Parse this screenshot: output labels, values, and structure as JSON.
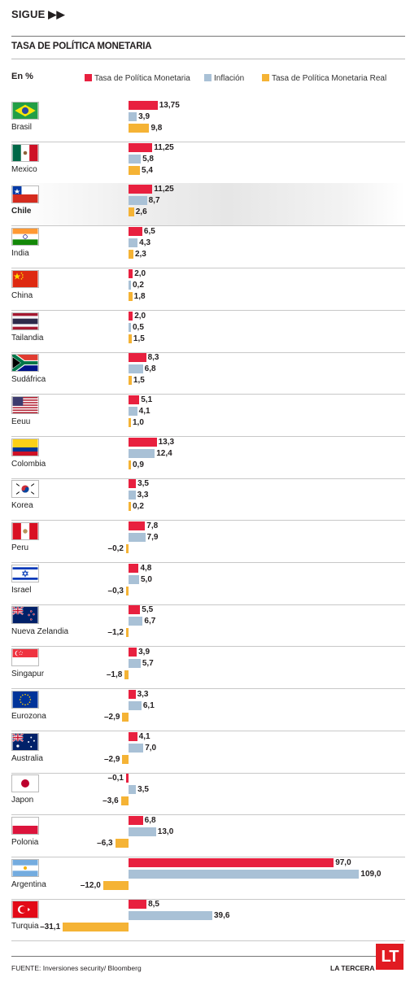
{
  "header": {
    "sigue": "SIGUE ▶▶",
    "title": "TASA DE POLÍTICA MONETARIA",
    "unit": "En %"
  },
  "legend": [
    {
      "label": "Tasa de Política Monetaria",
      "color": "#e8203f"
    },
    {
      "label": "Inflación",
      "color": "#a9c1d6"
    },
    {
      "label": "Tasa de Política Monetaria Real",
      "color": "#f5b335"
    }
  ],
  "chart_data": {
    "type": "bar",
    "orientation": "horizontal",
    "categories": [
      "Brasil",
      "Mexico",
      "Chile",
      "India",
      "China",
      "Tailandia",
      "Sudáfrica",
      "Eeuu",
      "Colombia",
      "Korea",
      "Peru",
      "Israel",
      "Nueva Zelandia",
      "Singapur",
      "Eurozona",
      "Australia",
      "Japon",
      "Polonia",
      "Argentina",
      "Turquia"
    ],
    "highlight": "Chile",
    "series": [
      {
        "name": "Tasa de Política Monetaria",
        "color": "#e8203f",
        "values": [
          13.75,
          11.25,
          11.25,
          6.5,
          2.0,
          2.0,
          8.3,
          5.1,
          13.3,
          3.5,
          7.8,
          4.8,
          5.5,
          3.9,
          3.3,
          4.1,
          -0.1,
          6.8,
          97.0,
          8.5
        ],
        "labels": [
          "13,75",
          "11,25",
          "11,25",
          "6,5",
          "2,0",
          "2,0",
          "8,3",
          "5,1",
          "13,3",
          "3,5",
          "7,8",
          "4,8",
          "5,5",
          "3,9",
          "3,3",
          "4,1",
          "–0,1",
          "6,8",
          "97,0",
          "8,5"
        ]
      },
      {
        "name": "Inflación",
        "color": "#a9c1d6",
        "values": [
          3.9,
          5.8,
          8.7,
          4.3,
          0.2,
          0.5,
          6.8,
          4.1,
          12.4,
          3.3,
          7.9,
          5.0,
          6.7,
          5.7,
          6.1,
          7.0,
          3.5,
          13.0,
          109.0,
          39.6
        ],
        "labels": [
          "3,9",
          "5,8",
          "8,7",
          "4,3",
          "0,2",
          "0,5",
          "6,8",
          "4,1",
          "12,4",
          "3,3",
          "7,9",
          "5,0",
          "6,7",
          "5,7",
          "6,1",
          "7,0",
          "3,5",
          "13,0",
          "109,0",
          "39,6"
        ]
      },
      {
        "name": "Tasa de Política Monetaria Real",
        "color": "#f5b335",
        "values": [
          9.8,
          5.4,
          2.6,
          2.3,
          1.8,
          1.5,
          1.5,
          1.0,
          0.9,
          0.2,
          -0.2,
          -0.3,
          -1.2,
          -1.8,
          -2.9,
          -2.9,
          -3.6,
          -6.3,
          -12.0,
          -31.1
        ],
        "labels": [
          "9,8",
          "5,4",
          "2,6",
          "2,3",
          "1,8",
          "1,5",
          "1,5",
          "1,0",
          "0,9",
          "0,2",
          "–0,2",
          "–0,3",
          "–1,2",
          "–1,8",
          "–2,9",
          "–2,9",
          "–3,6",
          "–6,3",
          "–12,0",
          "–31,1"
        ]
      }
    ],
    "flags": [
      "brazil-flag",
      "mexico-flag",
      "chile-flag",
      "india-flag",
      "china-flag",
      "thailand-flag",
      "south-africa-flag",
      "usa-flag",
      "colombia-flag",
      "korea-flag",
      "peru-flag",
      "israel-flag",
      "new-zealand-flag",
      "singapore-flag",
      "eurozone-flag",
      "australia-flag",
      "japan-flag",
      "poland-flag",
      "argentina-flag",
      "turkey-flag"
    ]
  },
  "footer": {
    "source": "FUENTE: Inversiones security/ Bloomberg",
    "brand": "LA TERCERA",
    "logo": "LT"
  }
}
